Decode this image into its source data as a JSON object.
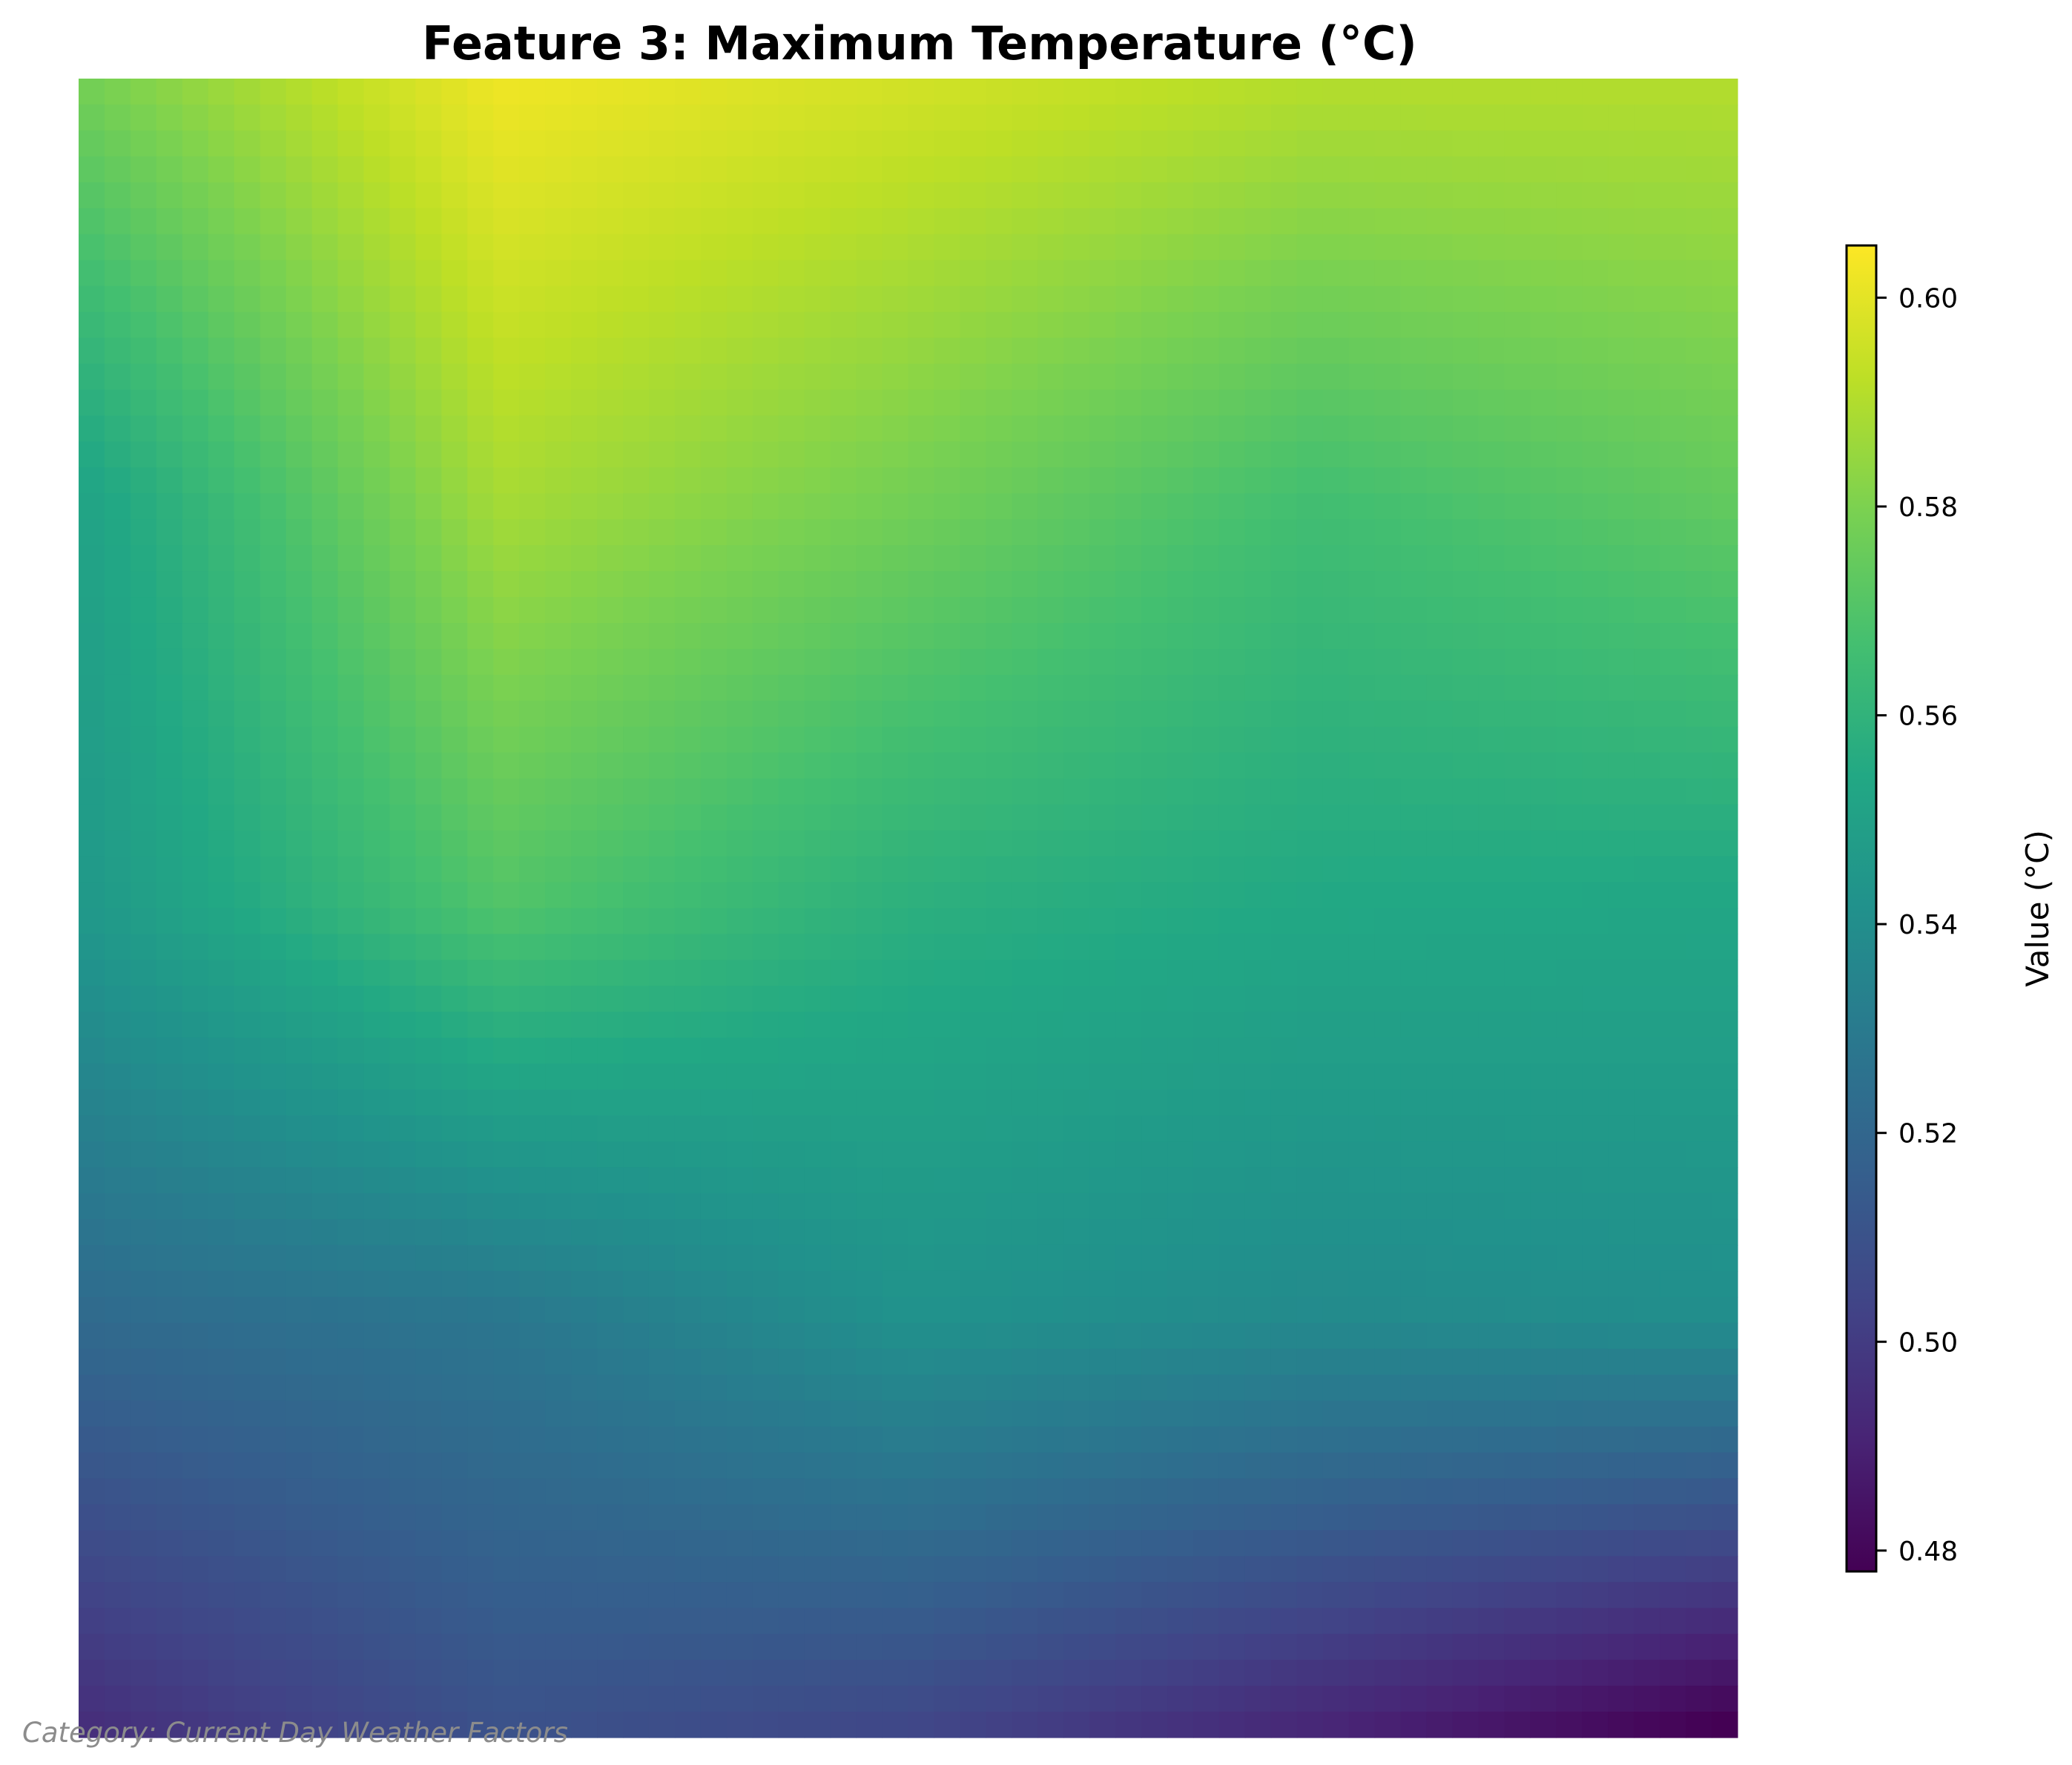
{
  "chart_data": {
    "type": "heatmap",
    "title": "Feature 3: Maximum Temperature (°C)",
    "colormap": "viridis",
    "grid_shape": [
      64,
      64
    ],
    "value_range": [
      0.478,
      0.605
    ],
    "control_values": {
      "rows": [
        0,
        0.25,
        0.5,
        0.75,
        1.0
      ],
      "cols": [
        0,
        0.25,
        0.5,
        0.75,
        1.0
      ],
      "values": [
        [
          0.578,
          0.602,
          0.596,
          0.59,
          0.59
        ],
        [
          0.552,
          0.588,
          0.578,
          0.566,
          0.574
        ],
        [
          0.546,
          0.57,
          0.558,
          0.554,
          0.553
        ],
        [
          0.522,
          0.528,
          0.542,
          0.538,
          0.54
        ],
        [
          0.495,
          0.51,
          0.505,
          0.492,
          0.478
        ]
      ]
    },
    "colorbar": {
      "label": "Value (°C)",
      "ticks": [
        0.48,
        0.5,
        0.52,
        0.54,
        0.56,
        0.58,
        0.6
      ],
      "tick_labels": [
        "0.48",
        "0.50",
        "0.52",
        "0.54",
        "0.56",
        "0.58",
        "0.60"
      ]
    },
    "footnote": "Category: Current Day Weather Factors",
    "axes_visible": false
  }
}
